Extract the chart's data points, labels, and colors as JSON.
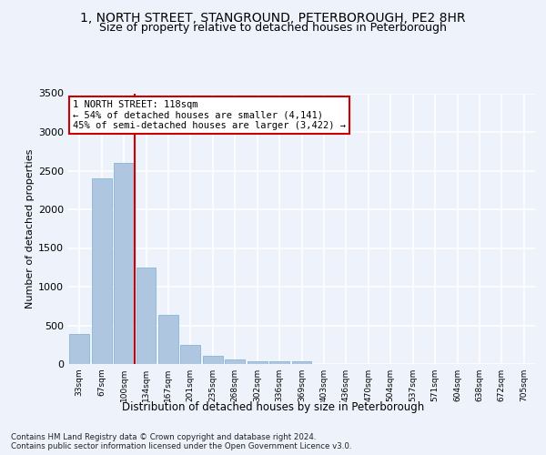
{
  "title_line1": "1, NORTH STREET, STANGROUND, PETERBOROUGH, PE2 8HR",
  "title_line2": "Size of property relative to detached houses in Peterborough",
  "xlabel": "Distribution of detached houses by size in Peterborough",
  "ylabel": "Number of detached properties",
  "footer_line1": "Contains HM Land Registry data © Crown copyright and database right 2024.",
  "footer_line2": "Contains public sector information licensed under the Open Government Licence v3.0.",
  "annotation_line1": "1 NORTH STREET: 118sqm",
  "annotation_line2": "← 54% of detached houses are smaller (4,141)",
  "annotation_line3": "45% of semi-detached houses are larger (3,422) →",
  "bar_color": "#aec6e0",
  "bar_edge_color": "#7aafd4",
  "vline_color": "#cc0000",
  "vline_x": 2.5,
  "categories": [
    "33sqm",
    "67sqm",
    "100sqm",
    "134sqm",
    "167sqm",
    "201sqm",
    "235sqm",
    "268sqm",
    "302sqm",
    "336sqm",
    "369sqm",
    "403sqm",
    "436sqm",
    "470sqm",
    "504sqm",
    "537sqm",
    "571sqm",
    "604sqm",
    "638sqm",
    "672sqm",
    "705sqm"
  ],
  "values": [
    390,
    2400,
    2600,
    1250,
    640,
    245,
    105,
    55,
    40,
    30,
    35,
    5,
    0,
    0,
    0,
    0,
    0,
    0,
    0,
    0,
    0
  ],
  "ylim": [
    0,
    3500
  ],
  "yticks": [
    0,
    500,
    1000,
    1500,
    2000,
    2500,
    3000,
    3500
  ],
  "background_color": "#eef2fa",
  "plot_background": "#eef2fa",
  "grid_color": "#ffffff",
  "title_fontsize": 10,
  "subtitle_fontsize": 9,
  "annotation_box_color": "#ffffff",
  "annotation_border_color": "#cc0000",
  "annotation_fontsize": 7.5
}
